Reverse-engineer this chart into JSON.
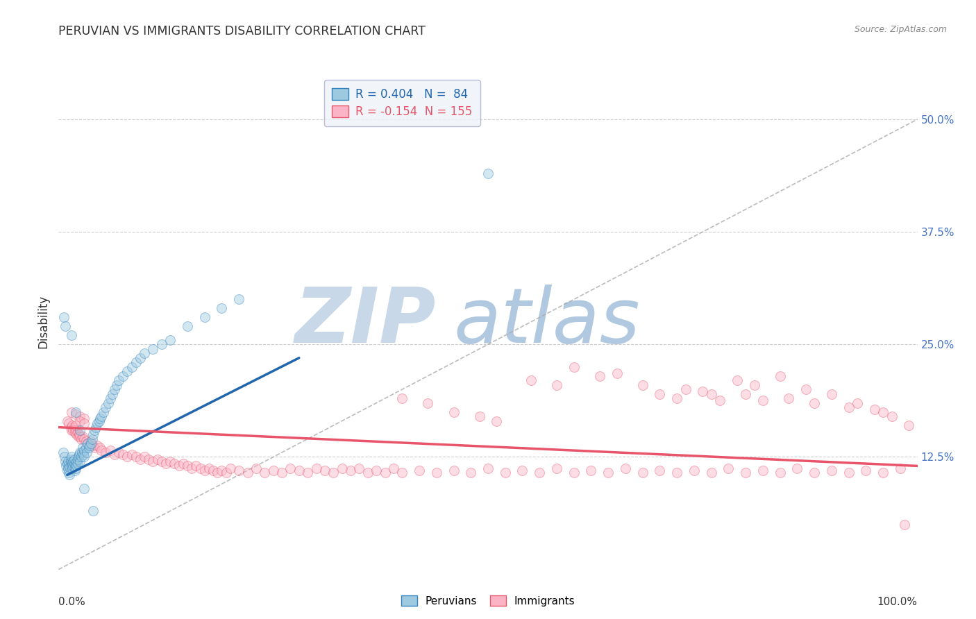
{
  "title": "PERUVIAN VS IMMIGRANTS DISABILITY CORRELATION CHART",
  "source_text": "Source: ZipAtlas.com",
  "ylabel": "Disability",
  "xlim": [
    0.0,
    1.0
  ],
  "ylim": [
    0.0,
    0.55
  ],
  "yticks": [
    0.0,
    0.125,
    0.25,
    0.375,
    0.5
  ],
  "ytick_labels_right": [
    "",
    "12.5%",
    "25.0%",
    "37.5%",
    "50.0%"
  ],
  "blue_R": 0.404,
  "blue_N": 84,
  "pink_R": -0.154,
  "pink_N": 155,
  "blue_color": "#9ecae1",
  "pink_color": "#fbb4c6",
  "blue_edge_color": "#3182bd",
  "pink_edge_color": "#e8556a",
  "blue_line_color": "#2166ac",
  "pink_line_color": "#e8556a",
  "ref_line_color": "#aaaaaa",
  "watermark_zip_color": "#c8d8e8",
  "watermark_atlas_color": "#b0c8e0",
  "background_color": "#ffffff",
  "grid_color": "#cccccc",
  "title_color": "#333333",
  "source_color": "#888888",
  "legend_bg_color": "#eef3f8",
  "legend_edge_color": "#aaaacc",
  "marker_size": 100,
  "marker_alpha": 0.45,
  "marker_lw": 0.7,
  "blue_trend_x": [
    0.01,
    0.28
  ],
  "blue_trend_y": [
    0.105,
    0.235
  ],
  "pink_trend_x": [
    0.0,
    1.0
  ],
  "pink_trend_y": [
    0.158,
    0.115
  ],
  "blue_scatter_x": [
    0.005,
    0.007,
    0.008,
    0.009,
    0.01,
    0.01,
    0.011,
    0.011,
    0.012,
    0.012,
    0.013,
    0.013,
    0.014,
    0.014,
    0.015,
    0.015,
    0.015,
    0.016,
    0.016,
    0.017,
    0.017,
    0.018,
    0.018,
    0.019,
    0.019,
    0.02,
    0.02,
    0.021,
    0.021,
    0.022,
    0.022,
    0.023,
    0.024,
    0.025,
    0.025,
    0.026,
    0.027,
    0.028,
    0.029,
    0.03,
    0.03,
    0.032,
    0.033,
    0.034,
    0.035,
    0.036,
    0.038,
    0.039,
    0.04,
    0.042,
    0.043,
    0.045,
    0.047,
    0.048,
    0.05,
    0.052,
    0.055,
    0.058,
    0.06,
    0.063,
    0.065,
    0.068,
    0.07,
    0.075,
    0.08,
    0.085,
    0.09,
    0.095,
    0.1,
    0.11,
    0.12,
    0.13,
    0.15,
    0.17,
    0.19,
    0.21,
    0.006,
    0.008,
    0.015,
    0.02,
    0.025,
    0.03,
    0.04,
    0.5
  ],
  "blue_scatter_y": [
    0.13,
    0.125,
    0.12,
    0.115,
    0.11,
    0.118,
    0.112,
    0.12,
    0.108,
    0.116,
    0.105,
    0.114,
    0.118,
    0.122,
    0.115,
    0.12,
    0.125,
    0.118,
    0.112,
    0.12,
    0.115,
    0.118,
    0.122,
    0.115,
    0.11,
    0.118,
    0.112,
    0.12,
    0.115,
    0.118,
    0.122,
    0.125,
    0.128,
    0.13,
    0.12,
    0.125,
    0.13,
    0.135,
    0.128,
    0.132,
    0.125,
    0.135,
    0.13,
    0.14,
    0.135,
    0.138,
    0.14,
    0.145,
    0.15,
    0.155,
    0.158,
    0.162,
    0.165,
    0.168,
    0.17,
    0.175,
    0.18,
    0.185,
    0.19,
    0.195,
    0.2,
    0.205,
    0.21,
    0.215,
    0.22,
    0.225,
    0.23,
    0.235,
    0.24,
    0.245,
    0.25,
    0.255,
    0.27,
    0.28,
    0.29,
    0.3,
    0.28,
    0.27,
    0.26,
    0.175,
    0.155,
    0.09,
    0.065,
    0.44
  ],
  "pink_scatter_x": [
    0.01,
    0.012,
    0.014,
    0.015,
    0.016,
    0.017,
    0.018,
    0.019,
    0.02,
    0.021,
    0.022,
    0.023,
    0.024,
    0.025,
    0.026,
    0.028,
    0.03,
    0.032,
    0.034,
    0.036,
    0.038,
    0.04,
    0.042,
    0.045,
    0.048,
    0.05,
    0.055,
    0.06,
    0.065,
    0.07,
    0.075,
    0.08,
    0.085,
    0.09,
    0.095,
    0.1,
    0.105,
    0.11,
    0.115,
    0.12,
    0.125,
    0.13,
    0.135,
    0.14,
    0.145,
    0.15,
    0.155,
    0.16,
    0.165,
    0.17,
    0.175,
    0.18,
    0.185,
    0.19,
    0.195,
    0.2,
    0.21,
    0.22,
    0.23,
    0.24,
    0.25,
    0.26,
    0.27,
    0.28,
    0.29,
    0.3,
    0.31,
    0.32,
    0.33,
    0.34,
    0.35,
    0.36,
    0.37,
    0.38,
    0.39,
    0.4,
    0.42,
    0.44,
    0.46,
    0.48,
    0.5,
    0.52,
    0.54,
    0.56,
    0.58,
    0.6,
    0.62,
    0.64,
    0.66,
    0.68,
    0.7,
    0.72,
    0.74,
    0.76,
    0.78,
    0.8,
    0.82,
    0.84,
    0.86,
    0.88,
    0.9,
    0.92,
    0.94,
    0.96,
    0.98,
    0.015,
    0.02,
    0.025,
    0.03,
    0.025,
    0.03,
    0.02,
    0.55,
    0.58,
    0.6,
    0.63,
    0.65,
    0.68,
    0.7,
    0.72,
    0.75,
    0.77,
    0.8,
    0.82,
    0.85,
    0.88,
    0.92,
    0.95,
    0.97,
    0.99,
    0.4,
    0.43,
    0.46,
    0.49,
    0.51,
    0.73,
    0.76,
    0.79,
    0.81,
    0.84,
    0.87,
    0.9,
    0.93,
    0.96,
    0.985
  ],
  "pink_scatter_y": [
    0.165,
    0.162,
    0.158,
    0.155,
    0.16,
    0.155,
    0.158,
    0.152,
    0.155,
    0.15,
    0.152,
    0.148,
    0.15,
    0.148,
    0.145,
    0.148,
    0.145,
    0.142,
    0.14,
    0.138,
    0.142,
    0.138,
    0.135,
    0.138,
    0.135,
    0.132,
    0.13,
    0.132,
    0.128,
    0.13,
    0.128,
    0.125,
    0.128,
    0.125,
    0.122,
    0.125,
    0.122,
    0.12,
    0.122,
    0.12,
    0.118,
    0.12,
    0.118,
    0.115,
    0.118,
    0.115,
    0.112,
    0.115,
    0.112,
    0.11,
    0.112,
    0.11,
    0.108,
    0.11,
    0.108,
    0.112,
    0.11,
    0.108,
    0.112,
    0.108,
    0.11,
    0.108,
    0.112,
    0.11,
    0.108,
    0.112,
    0.11,
    0.108,
    0.112,
    0.11,
    0.112,
    0.108,
    0.11,
    0.108,
    0.112,
    0.108,
    0.11,
    0.108,
    0.11,
    0.108,
    0.112,
    0.108,
    0.11,
    0.108,
    0.112,
    0.108,
    0.11,
    0.108,
    0.112,
    0.108,
    0.11,
    0.108,
    0.11,
    0.108,
    0.112,
    0.108,
    0.11,
    0.108,
    0.112,
    0.108,
    0.11,
    0.108,
    0.11,
    0.108,
    0.112,
    0.175,
    0.172,
    0.17,
    0.168,
    0.165,
    0.162,
    0.16,
    0.21,
    0.205,
    0.225,
    0.215,
    0.218,
    0.205,
    0.195,
    0.19,
    0.198,
    0.188,
    0.195,
    0.188,
    0.19,
    0.185,
    0.18,
    0.178,
    0.17,
    0.16,
    0.19,
    0.185,
    0.175,
    0.17,
    0.165,
    0.2,
    0.195,
    0.21,
    0.205,
    0.215,
    0.2,
    0.195,
    0.185,
    0.175,
    0.05
  ]
}
